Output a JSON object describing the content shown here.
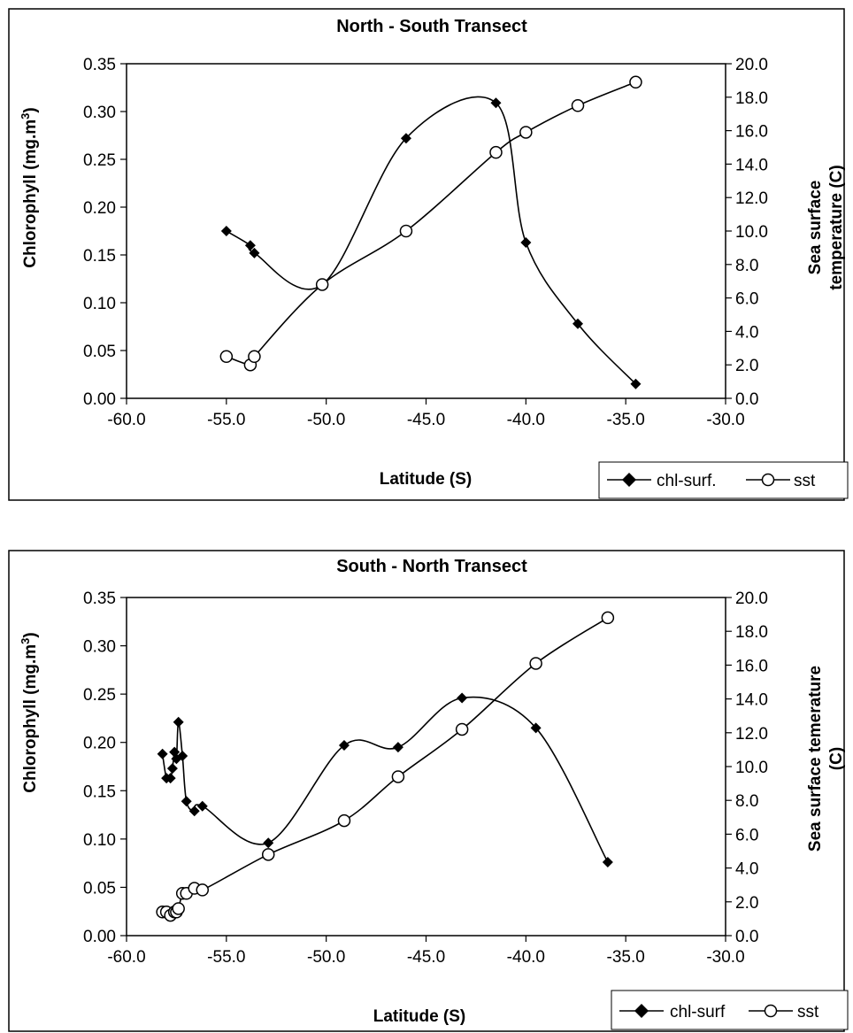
{
  "chart_data": [
    {
      "type": "line",
      "title": "North - South Transect",
      "xlabel": "Latitude (S)",
      "ylabel_left_main": "Chlorophyll (mg.m",
      "ylabel_left_sup": "3",
      "ylabel_left_close": ")",
      "ylabel_right_lines": [
        "Sea surface",
        "temperature (C)"
      ],
      "xlim": [
        -60,
        -30
      ],
      "ylim_left": [
        0,
        0.35
      ],
      "ylim_right": [
        0,
        20
      ],
      "x_ticks": [
        "-60.0",
        "-55.0",
        "-50.0",
        "-45.0",
        "-40.0",
        "-35.0",
        "-30.0"
      ],
      "y_ticks_left": [
        "0.00",
        "0.05",
        "0.10",
        "0.15",
        "0.20",
        "0.25",
        "0.30",
        "0.35"
      ],
      "y_ticks_right": [
        "0.0",
        "2.0",
        "4.0",
        "6.0",
        "8.0",
        "10.0",
        "12.0",
        "14.0",
        "16.0",
        "18.0",
        "20.0"
      ],
      "legend_position": "bottom-right",
      "series": [
        {
          "name": "chl-surf.",
          "axis": "left",
          "marker": "diamond",
          "x": [
            -55.0,
            -53.8,
            -53.6,
            -50.2,
            -46.0,
            -41.5,
            -40.0,
            -37.4,
            -34.5
          ],
          "y": [
            0.175,
            0.16,
            0.152,
            0.119,
            0.272,
            0.309,
            0.163,
            0.078,
            0.015
          ]
        },
        {
          "name": "sst",
          "axis": "right",
          "marker": "circle",
          "x": [
            -55.0,
            -53.8,
            -53.6,
            -50.2,
            -46.0,
            -41.5,
            -40.0,
            -37.4,
            -34.5
          ],
          "y": [
            2.5,
            2.0,
            2.5,
            6.8,
            10.0,
            14.7,
            15.9,
            17.5,
            18.9
          ]
        }
      ]
    },
    {
      "type": "line",
      "title": "South - North Transect",
      "xlabel": "Latitude (S)",
      "ylabel_left_main": "Chlorophyll (mg.m",
      "ylabel_left_sup": "3",
      "ylabel_left_close": ")",
      "ylabel_right_lines": [
        "Sea surface temerature",
        "(C)"
      ],
      "xlim": [
        -60,
        -30
      ],
      "ylim_left": [
        0,
        0.35
      ],
      "ylim_right": [
        0,
        20
      ],
      "x_ticks": [
        "-60.0",
        "-55.0",
        "-50.0",
        "-45.0",
        "-40.0",
        "-35.0",
        "-30.0"
      ],
      "y_ticks_left": [
        "0.00",
        "0.05",
        "0.10",
        "0.15",
        "0.20",
        "0.25",
        "0.30",
        "0.35"
      ],
      "y_ticks_right": [
        "0.0",
        "2.0",
        "4.0",
        "6.0",
        "8.0",
        "10.0",
        "12.0",
        "14.0",
        "16.0",
        "18.0",
        "20.0"
      ],
      "legend_position": "bottom-right",
      "series": [
        {
          "name": "chl-surf",
          "axis": "left",
          "marker": "diamond",
          "x": [
            -58.2,
            -58.0,
            -57.8,
            -57.7,
            -57.6,
            -57.5,
            -57.4,
            -57.2,
            -57.0,
            -56.6,
            -56.2,
            -52.9,
            -49.1,
            -46.4,
            -43.2,
            -39.5,
            -35.9
          ],
          "y": [
            0.188,
            0.163,
            0.163,
            0.173,
            0.19,
            0.183,
            0.221,
            0.186,
            0.139,
            0.129,
            0.134,
            0.096,
            0.197,
            0.195,
            0.246,
            0.215,
            0.076
          ]
        },
        {
          "name": "sst",
          "axis": "right",
          "marker": "circle",
          "x": [
            -58.2,
            -58.0,
            -57.8,
            -57.6,
            -57.5,
            -57.4,
            -57.2,
            -57.0,
            -56.6,
            -56.2,
            -52.9,
            -49.1,
            -46.4,
            -43.2,
            -39.5,
            -35.9
          ],
          "y": [
            1.4,
            1.4,
            1.2,
            1.4,
            1.4,
            1.6,
            2.5,
            2.5,
            2.8,
            2.7,
            4.8,
            6.8,
            9.4,
            12.2,
            16.1,
            18.8
          ]
        }
      ]
    }
  ]
}
